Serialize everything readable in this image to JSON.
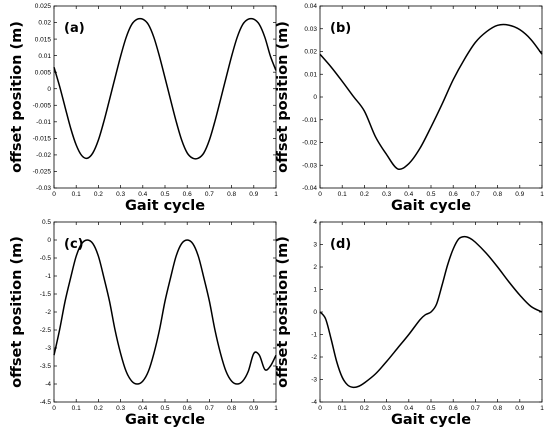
{
  "chart_data": [
    {
      "type": "line",
      "panel_label": "(a)",
      "xlabel": "Gait cycle",
      "ylabel": "offset position (m)",
      "xlim": [
        0,
        1
      ],
      "ylim": [
        -0.03,
        0.025
      ],
      "x_ticks": [
        "0",
        "0.1",
        "0.2",
        "0.3",
        "0.4",
        "0.5",
        "0.6",
        "0.7",
        "0.8",
        "0.9",
        "1"
      ],
      "y_ticks": [
        "-0.03",
        "-0.025",
        "-0.02",
        "-0.015",
        "-0.01",
        "-0.005",
        "0",
        "0.005",
        "0.01",
        "0.015",
        "0.02",
        "0.025"
      ],
      "series": [
        {
          "x": [
            0,
            0.025,
            0.05,
            0.075,
            0.1,
            0.125,
            0.15,
            0.175,
            0.2,
            0.225,
            0.25,
            0.275,
            0.3,
            0.325,
            0.35,
            0.375,
            0.4,
            0.425,
            0.45,
            0.475,
            0.5,
            0.525,
            0.55,
            0.575,
            0.6,
            0.625,
            0.65,
            0.675,
            0.7,
            0.725,
            0.75,
            0.775,
            0.8,
            0.825,
            0.85,
            0.875,
            0.9,
            0.925,
            0.95,
            0.975,
            1
          ],
          "y": [
            0.0065,
            0.0008,
            -0.0056,
            -0.0119,
            -0.017,
            -0.0202,
            -0.021,
            -0.0194,
            -0.0155,
            -0.0098,
            -0.0033,
            0.0033,
            0.0098,
            0.0155,
            0.0194,
            0.021,
            0.021,
            0.0194,
            0.0155,
            0.0098,
            0.0033,
            -0.0033,
            -0.0098,
            -0.0155,
            -0.0194,
            -0.021,
            -0.021,
            -0.0194,
            -0.0155,
            -0.0098,
            -0.0033,
            0.0033,
            0.0098,
            0.0155,
            0.0194,
            0.021,
            0.021,
            0.0194,
            0.0155,
            0.0098,
            0.0055
          ]
        }
      ]
    },
    {
      "type": "line",
      "panel_label": "(b)",
      "xlabel": "Gait cycle",
      "ylabel": "offset position (m)",
      "xlim": [
        0,
        1
      ],
      "ylim": [
        -0.04,
        0.04
      ],
      "x_ticks": [
        "0",
        "0.1",
        "0.2",
        "0.3",
        "0.4",
        "0.5",
        "0.6",
        "0.7",
        "0.8",
        "0.9",
        "1"
      ],
      "y_ticks": [
        "-0.04",
        "-0.03",
        "-0.02",
        "-0.01",
        "0",
        "0.01",
        "0.02",
        "0.03",
        "0.04"
      ],
      "series": [
        {
          "x": [
            0,
            0.05,
            0.1,
            0.15,
            0.2,
            0.25,
            0.3,
            0.35,
            0.4,
            0.45,
            0.5,
            0.55,
            0.6,
            0.65,
            0.7,
            0.75,
            0.8,
            0.85,
            0.9,
            0.95,
            1
          ],
          "y": [
            0.0188,
            0.0132,
            0.0069,
            0.0003,
            -0.0062,
            -0.0175,
            -0.0253,
            -0.0316,
            -0.0293,
            -0.0226,
            -0.0132,
            -0.0031,
            0.0076,
            0.0165,
            0.024,
            0.0287,
            0.0315,
            0.0316,
            0.0296,
            0.0253,
            0.0188
          ]
        }
      ]
    },
    {
      "type": "line",
      "panel_label": "(c)",
      "xlabel": "Gait cycle",
      "ylabel": "offset position (m)",
      "xlim": [
        0,
        1
      ],
      "ylim": [
        -4.5,
        0.5
      ],
      "x_ticks": [
        "0",
        "0.1",
        "0.2",
        "0.3",
        "0.4",
        "0.5",
        "0.6",
        "0.7",
        "0.8",
        "0.9",
        "1"
      ],
      "y_ticks": [
        "-4.5",
        "-4",
        "-3.5",
        "-3",
        "-2.5",
        "-2",
        "-1.5",
        "-1",
        "-0.5",
        "0",
        "0.5"
      ],
      "series": [
        {
          "x": [
            0,
            0.025,
            0.05,
            0.075,
            0.1,
            0.125,
            0.15,
            0.175,
            0.2,
            0.225,
            0.25,
            0.275,
            0.3,
            0.325,
            0.35,
            0.375,
            0.4,
            0.425,
            0.45,
            0.475,
            0.5,
            0.525,
            0.55,
            0.575,
            0.6,
            0.625,
            0.65,
            0.675,
            0.7,
            0.725,
            0.75,
            0.775,
            0.8,
            0.825,
            0.85,
            0.875,
            0.9,
            0.925,
            0.95,
            0.975,
            1
          ],
          "y": [
            -3.2,
            -2.5,
            -1.7,
            -1.05,
            -0.45,
            -0.1,
            0,
            -0.1,
            -0.45,
            -1.05,
            -1.7,
            -2.5,
            -3.15,
            -3.65,
            -3.92,
            -4.0,
            -3.92,
            -3.65,
            -3.15,
            -2.5,
            -1.7,
            -1.05,
            -0.45,
            -0.1,
            0,
            -0.1,
            -0.45,
            -1.05,
            -1.7,
            -2.5,
            -3.15,
            -3.65,
            -3.92,
            -4.0,
            -3.92,
            -3.65,
            -3.15,
            -3.2,
            -3.6,
            -3.5,
            -3.2
          ]
        }
      ]
    },
    {
      "type": "line",
      "panel_label": "(d)",
      "xlabel": "Gait cycle",
      "ylabel": "offset position (m)",
      "xlim": [
        0,
        1
      ],
      "ylim": [
        -4,
        4
      ],
      "x_ticks": [
        "0",
        "0.1",
        "0.2",
        "0.3",
        "0.4",
        "0.5",
        "0.6",
        "0.7",
        "0.8",
        "0.9",
        "1"
      ],
      "y_ticks": [
        "-4",
        "-3",
        "-2",
        "-1",
        "0",
        "1",
        "2",
        "3",
        "4"
      ],
      "series": [
        {
          "x": [
            0,
            0.025,
            0.05,
            0.075,
            0.1,
            0.125,
            0.15,
            0.175,
            0.2,
            0.25,
            0.3,
            0.35,
            0.4,
            0.45,
            0.475,
            0.5,
            0.525,
            0.55,
            0.575,
            0.6,
            0.625,
            0.65,
            0.675,
            0.7,
            0.75,
            0.8,
            0.85,
            0.9,
            0.95,
            1
          ],
          "y": [
            0,
            -0.3,
            -1.2,
            -2.2,
            -2.9,
            -3.25,
            -3.35,
            -3.3,
            -3.15,
            -2.75,
            -2.2,
            -1.6,
            -1.0,
            -0.35,
            -0.12,
            0,
            0.35,
            1.2,
            2.1,
            2.8,
            3.25,
            3.35,
            3.28,
            3.1,
            2.6,
            2.0,
            1.35,
            0.75,
            0.25,
            0
          ]
        }
      ]
    }
  ]
}
